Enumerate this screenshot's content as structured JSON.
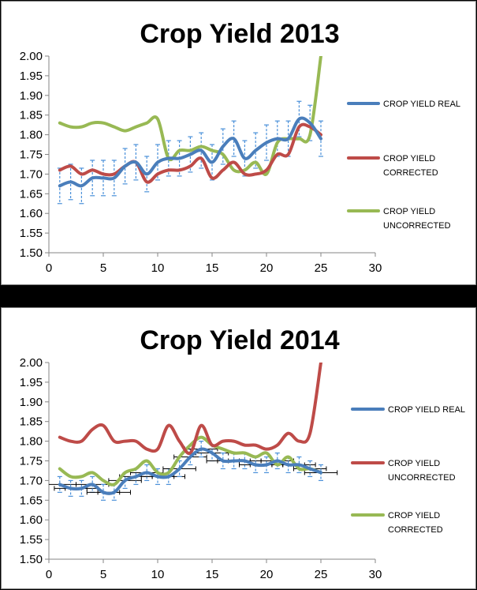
{
  "colors": {
    "real": "#4a7ebb",
    "red": "#be4b48",
    "green": "#98b954",
    "errorbar": "#4a90d9",
    "xerror": "#000000",
    "axis": "#868686"
  },
  "chart_data": [
    {
      "type": "line",
      "title": "Crop Yield 2013",
      "xlim": [
        0,
        30
      ],
      "ylim": [
        1.5,
        2.0
      ],
      "x_ticks": [
        "0",
        "5",
        "10",
        "15",
        "20",
        "25",
        "30"
      ],
      "y_ticks": [
        "1.50",
        "1.55",
        "1.60",
        "1.65",
        "1.70",
        "1.75",
        "1.80",
        "1.85",
        "1.90",
        "1.95",
        "2.00"
      ],
      "legend_position": "right",
      "series": [
        {
          "name": "CROP YIELD REAL",
          "name_lines": [
            "CROP YIELD REAL"
          ],
          "color_key": "real",
          "x": [
            1,
            2,
            3,
            4,
            5,
            6,
            7,
            8,
            9,
            10,
            11,
            12,
            13,
            14,
            15,
            16,
            17,
            18,
            19,
            20,
            21,
            22,
            23,
            24,
            25
          ],
          "values": [
            1.67,
            1.68,
            1.67,
            1.69,
            1.69,
            1.69,
            1.72,
            1.73,
            1.7,
            1.73,
            1.74,
            1.74,
            1.75,
            1.76,
            1.73,
            1.77,
            1.79,
            1.74,
            1.76,
            1.78,
            1.79,
            1.79,
            1.84,
            1.83,
            1.79
          ],
          "error_y": 0.045
        },
        {
          "name": "CROP YIELD CORRECTED",
          "name_lines": [
            "CROP YIELD",
            "CORRECTED"
          ],
          "color_key": "red",
          "x": [
            1,
            2,
            3,
            4,
            5,
            6,
            7,
            8,
            9,
            10,
            11,
            12,
            13,
            14,
            15,
            16,
            17,
            18,
            19,
            20,
            21,
            22,
            23,
            24,
            25
          ],
          "values": [
            1.71,
            1.72,
            1.7,
            1.71,
            1.7,
            1.7,
            1.72,
            1.73,
            1.68,
            1.7,
            1.71,
            1.71,
            1.72,
            1.74,
            1.69,
            1.71,
            1.73,
            1.7,
            1.7,
            1.71,
            1.75,
            1.75,
            1.82,
            1.82,
            1.8
          ]
        },
        {
          "name": "CROP YIELD UNCORRECTED",
          "name_lines": [
            "CROP YIELD",
            "UNCORRECTED"
          ],
          "color_key": "green",
          "x": [
            1,
            2,
            3,
            4,
            5,
            6,
            7,
            8,
            9,
            10,
            11,
            12,
            13,
            14,
            15,
            16,
            17,
            18,
            19,
            20,
            21,
            22,
            23,
            24,
            25
          ],
          "values": [
            1.83,
            1.82,
            1.82,
            1.83,
            1.83,
            1.82,
            1.81,
            1.82,
            1.83,
            1.84,
            1.74,
            1.76,
            1.76,
            1.77,
            1.76,
            1.75,
            1.71,
            1.71,
            1.73,
            1.7,
            1.78,
            1.79,
            1.79,
            1.8,
            2.0
          ]
        }
      ]
    },
    {
      "type": "line",
      "title": "Crop Yield 2014",
      "xlim": [
        0,
        30
      ],
      "ylim": [
        1.5,
        2.0
      ],
      "x_ticks": [
        "0",
        "5",
        "10",
        "15",
        "20",
        "25",
        "30"
      ],
      "y_ticks": [
        "1.50",
        "1.55",
        "1.60",
        "1.65",
        "1.70",
        "1.75",
        "1.80",
        "1.85",
        "1.90",
        "1.95",
        "2.00"
      ],
      "legend_position": "right",
      "series": [
        {
          "name": "CROP YIELD REAL",
          "name_lines": [
            "CROP YIELD REAL"
          ],
          "color_key": "real",
          "x": [
            1,
            2,
            3,
            4,
            5,
            6,
            7,
            8,
            9,
            10,
            11,
            12,
            13,
            14,
            15,
            16,
            17,
            18,
            19,
            20,
            21,
            22,
            23,
            24,
            25
          ],
          "values": [
            1.69,
            1.68,
            1.68,
            1.69,
            1.67,
            1.67,
            1.7,
            1.71,
            1.72,
            1.71,
            1.71,
            1.73,
            1.76,
            1.78,
            1.77,
            1.75,
            1.75,
            1.75,
            1.74,
            1.74,
            1.75,
            1.74,
            1.74,
            1.73,
            1.72
          ],
          "error_y": 0.02,
          "error_x": 1.5
        },
        {
          "name": "CROP YIELD UNCORRECTED",
          "name_lines": [
            "CROP YIELD",
            "UNCORRECTED"
          ],
          "color_key": "red",
          "x": [
            1,
            2,
            3,
            4,
            5,
            6,
            7,
            8,
            9,
            10,
            11,
            12,
            13,
            14,
            15,
            16,
            17,
            18,
            19,
            20,
            21,
            22,
            23,
            24,
            25
          ],
          "values": [
            1.81,
            1.8,
            1.8,
            1.83,
            1.84,
            1.8,
            1.8,
            1.8,
            1.78,
            1.78,
            1.84,
            1.8,
            1.77,
            1.84,
            1.79,
            1.8,
            1.8,
            1.79,
            1.79,
            1.78,
            1.79,
            1.82,
            1.8,
            1.82,
            2.0
          ]
        },
        {
          "name": "CROP YIELD CORRECTED",
          "name_lines": [
            "CROP YIELD",
            "CORRECTED"
          ],
          "color_key": "green",
          "x": [
            1,
            2,
            3,
            4,
            5,
            6,
            7,
            8,
            9,
            10,
            11,
            12,
            13,
            14,
            15,
            16,
            17,
            18,
            19,
            20,
            21,
            22,
            23,
            24,
            25
          ],
          "values": [
            1.73,
            1.71,
            1.71,
            1.72,
            1.7,
            1.69,
            1.72,
            1.73,
            1.75,
            1.72,
            1.72,
            1.76,
            1.79,
            1.81,
            1.79,
            1.78,
            1.77,
            1.77,
            1.76,
            1.77,
            1.74,
            1.76,
            1.73,
            1.73,
            1.72
          ]
        }
      ]
    }
  ]
}
